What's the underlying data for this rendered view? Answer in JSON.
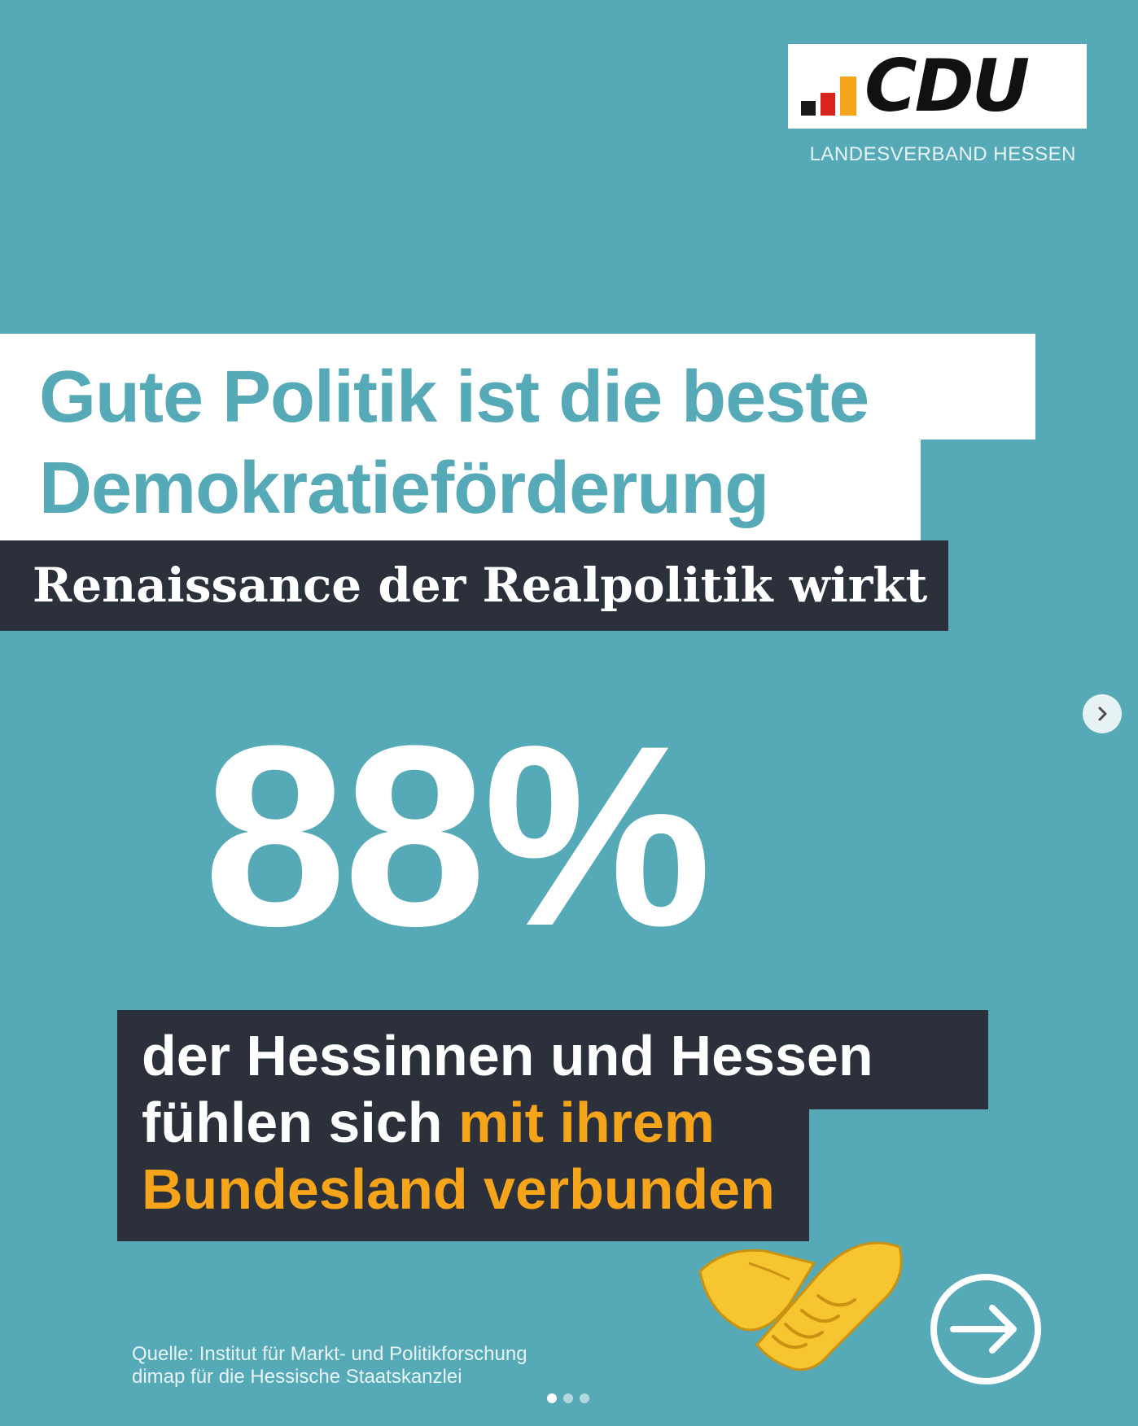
{
  "logo": {
    "text": "CDU",
    "subtitle": "LANDESVERBAND HESSEN",
    "bar_colors": [
      "#1b1b1b",
      "#d9241d",
      "#f6a41a"
    ]
  },
  "headline": {
    "line1": "Gute Politik ist die beste",
    "line2": "Demokratieförderung"
  },
  "subheadline": "Renaissance der Realpolitik wirkt",
  "statistic": {
    "value": "88%",
    "text_part1": "der Hessinnen und Hessen fühlen sich ",
    "text_highlight": "mit ihrem Bundesland verbunden"
  },
  "source": {
    "line1": "Quelle: Institut für Markt- und Politikforschung",
    "line2": "dimap für die Hessische Staatskanzlei"
  },
  "icons": {
    "handshake": "handshake-icon",
    "next_arrow": "arrow-right-circle-icon",
    "nav_next": "chevron-right-icon"
  },
  "carousel": {
    "total": 3,
    "active": 1
  },
  "colors": {
    "background": "#56a9b6",
    "dark_box": "#2b303b",
    "highlight": "#f6a41a",
    "headline": "#56a9b6"
  }
}
